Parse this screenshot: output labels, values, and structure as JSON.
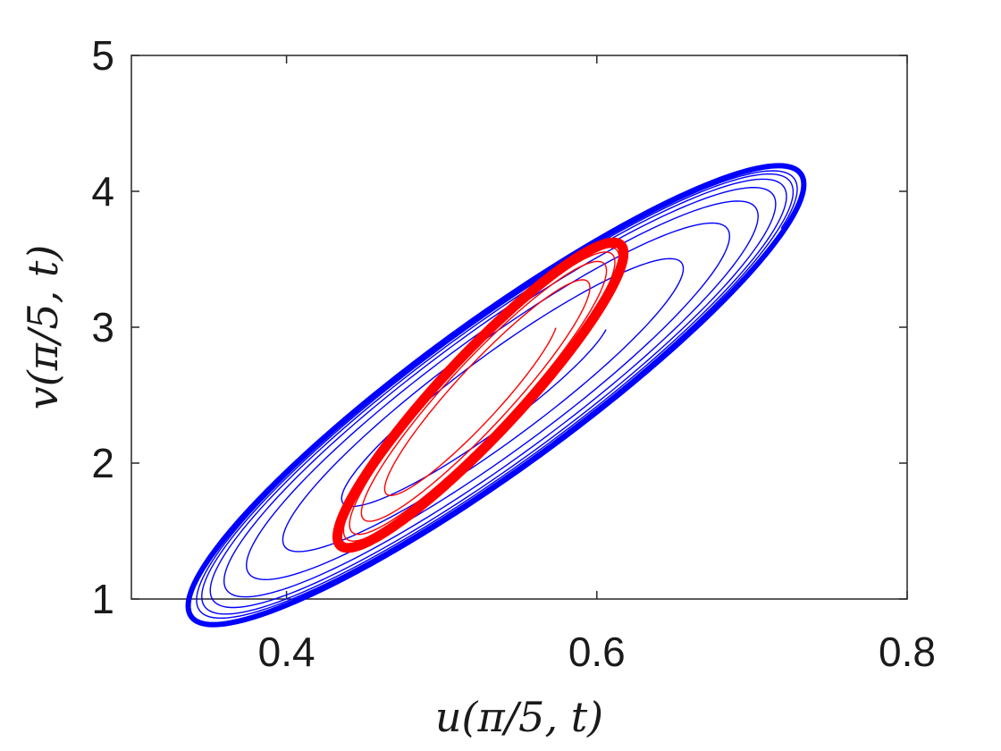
{
  "chart_data": {
    "type": "line",
    "title": "",
    "xlabel": "u(π/5, t)",
    "ylabel": "v(π/5, t)",
    "xlim": [
      0.3,
      0.8
    ],
    "ylim": [
      1,
      5
    ],
    "xticks": [
      "0.4",
      "0.6",
      "0.8"
    ],
    "xtick_values": [
      0.4,
      0.6,
      0.8
    ],
    "yticks": [
      "1",
      "2",
      "3",
      "4",
      "5"
    ],
    "ytick_values": [
      1,
      2,
      3,
      4,
      5
    ],
    "grid": false,
    "legend": "none",
    "series": [
      {
        "color": "#0000ff",
        "center": [
          0.535,
          2.5
        ],
        "limit_cycle": {
          "semi_axis_u": 0.22,
          "semi_axis_v": 1.3,
          "angle_deg": -36.0
        },
        "transient_turns": 7,
        "start_scale": 0.38
      },
      {
        "color": "#ff0000",
        "center": [
          0.525,
          2.5
        ],
        "limit_cycle": {
          "semi_axis_u": 0.085,
          "semi_axis_v": 1.2,
          "angle_deg": -47.0
        },
        "transient_turns": 5,
        "start_scale": 0.55
      }
    ]
  }
}
